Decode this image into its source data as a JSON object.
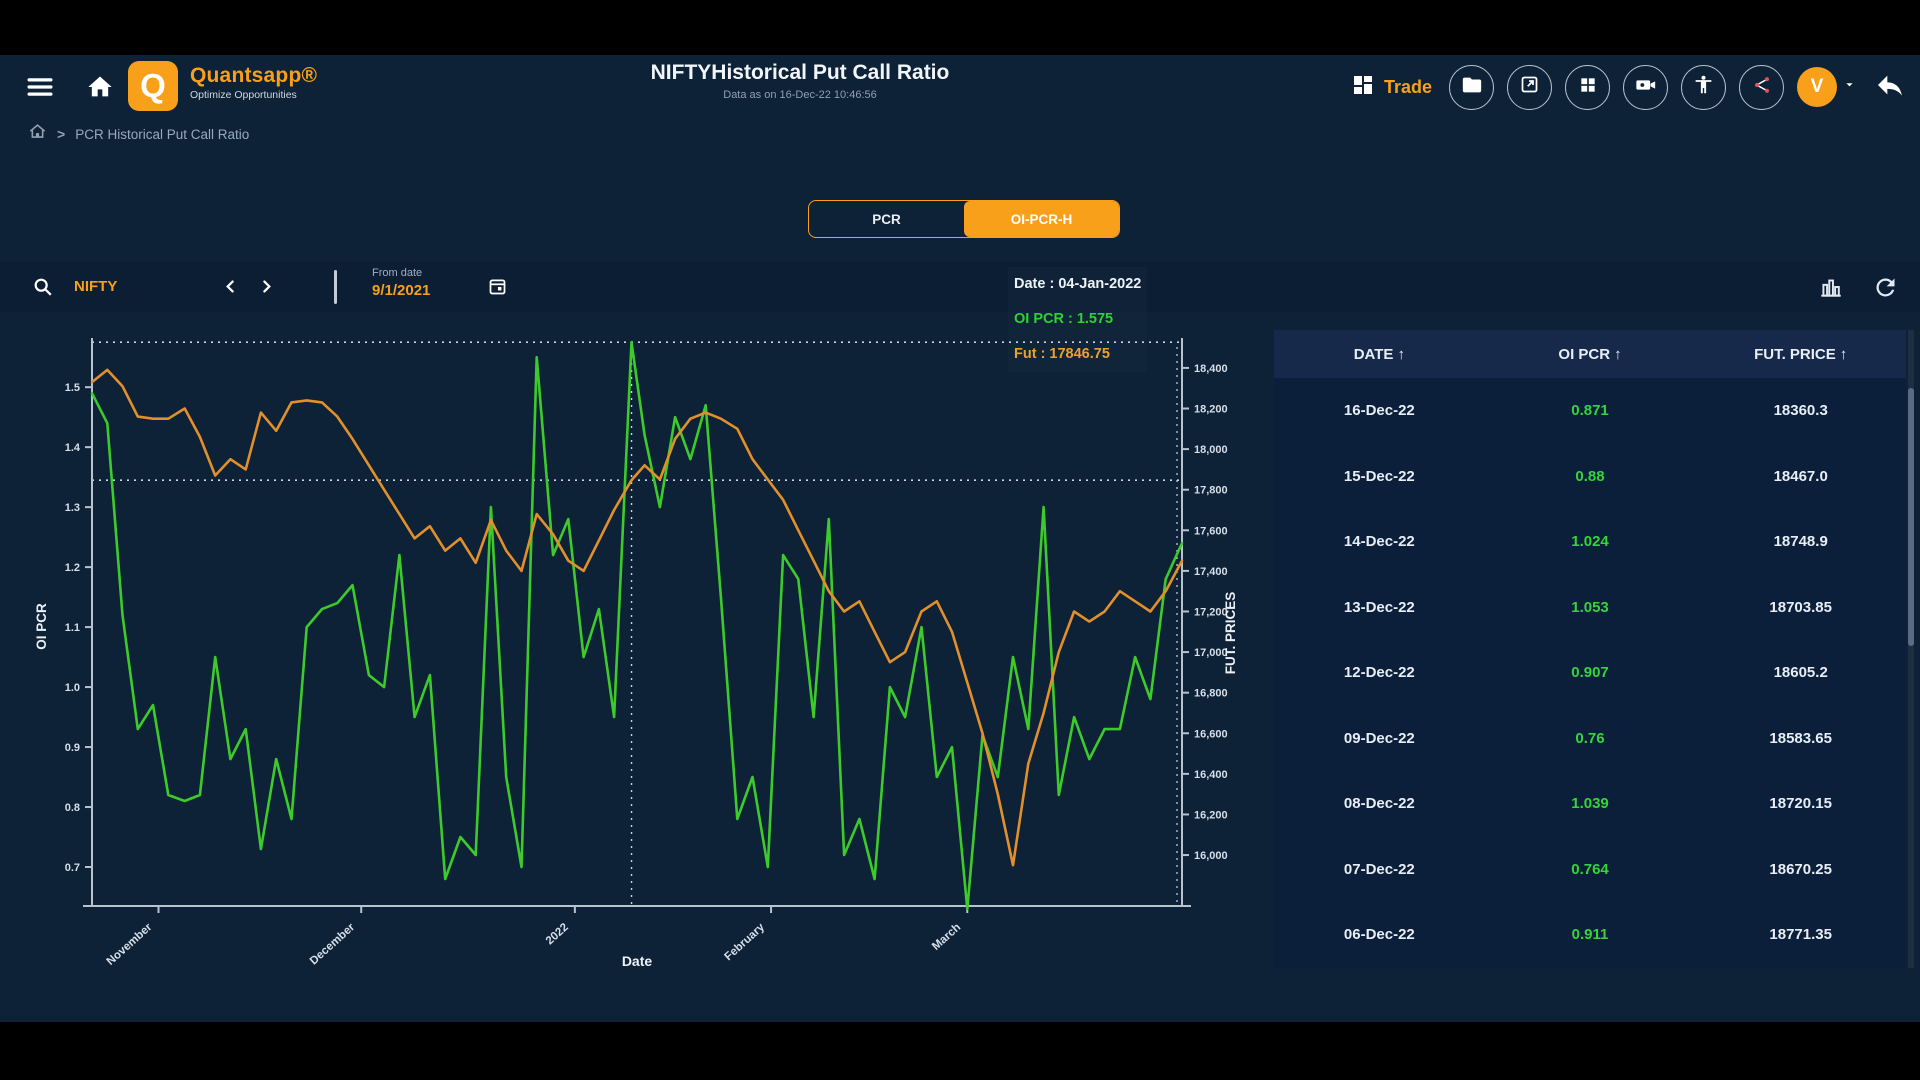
{
  "header": {
    "brand_name": "Quantsapp®",
    "brand_tagline": "Optimize Opportunities",
    "logo_letter": "Q",
    "title": "NIFTYHistorical Put Call Ratio",
    "subtitle": "Data as on 16-Dec-22 10:46:56",
    "trade_label": "Trade",
    "avatar_initial": "V"
  },
  "breadcrumb": {
    "separator": ">",
    "item": "PCR Historical Put Call Ratio"
  },
  "tabs": {
    "pcr": "PCR",
    "oi_pcr_h": "OI-PCR-H"
  },
  "toolbar": {
    "symbol": "NIFTY",
    "from_date_label": "From date",
    "from_date_value": "9/1/2021"
  },
  "tooltip": {
    "date": "Date : 04-Jan-2022",
    "oi_pcr": "OI PCR : 1.575",
    "fut": "Fut : 17846.75"
  },
  "table": {
    "sort_glyph": "↑",
    "columns": [
      {
        "label": "DATE"
      },
      {
        "label": "OI PCR"
      },
      {
        "label": "FUT. PRICE"
      }
    ],
    "rows": [
      [
        "16-Dec-22",
        "0.871",
        "18360.3"
      ],
      [
        "15-Dec-22",
        "0.88",
        "18467.0"
      ],
      [
        "14-Dec-22",
        "1.024",
        "18748.9"
      ],
      [
        "13-Dec-22",
        "1.053",
        "18703.85"
      ],
      [
        "12-Dec-22",
        "0.907",
        "18605.2"
      ],
      [
        "09-Dec-22",
        "0.76",
        "18583.65"
      ],
      [
        "08-Dec-22",
        "1.039",
        "18720.15"
      ],
      [
        "07-Dec-22",
        "0.764",
        "18670.25"
      ],
      [
        "06-Dec-22",
        "0.911",
        "18771.35"
      ]
    ]
  },
  "colors": {
    "accent_orange": "#f9a01b",
    "line_green": "#3ccb2b",
    "line_orange": "#e2902b",
    "table_green": "#35d43a",
    "background_navy": "#0d2137"
  },
  "chart_data": {
    "type": "line",
    "title": "NIFTY Historical Put Call Ratio",
    "xlabel": "Date",
    "ylabel_left": "OI PCR",
    "ylabel_right": "FUT. PRICES",
    "grid": false,
    "ylim_left": [
      0.635,
      1.567
    ],
    "ylim_right": [
      15749,
      18503
    ],
    "left_tick_labels": [
      "1.5",
      "1.4",
      "1.3",
      "1.2",
      "1.1",
      "1.0",
      "0.9",
      "0.8",
      "0.7"
    ],
    "left_tick_values": [
      1.5,
      1.4,
      1.3,
      1.2,
      1.1,
      1.0,
      0.9,
      0.8,
      0.7
    ],
    "right_tick_labels": [
      "18,400",
      "18,200",
      "18,000",
      "17,800",
      "17,600",
      "17,400",
      "17,200",
      "17,000",
      "16,800",
      "16,600",
      "16,400",
      "16,200",
      "16,000"
    ],
    "right_tick_values": [
      18400,
      18200,
      18000,
      17800,
      17600,
      17400,
      17200,
      17000,
      16800,
      16600,
      16400,
      16200,
      16000
    ],
    "x_ticks": [
      {
        "label": "November",
        "f": 0.061
      },
      {
        "label": "December",
        "f": 0.247
      },
      {
        "label": "2022",
        "f": 0.443
      },
      {
        "label": "February",
        "f": 0.623
      },
      {
        "label": "March",
        "f": 0.803
      }
    ],
    "crosshair": {
      "date": "04-Jan-2022",
      "x_frac": 0.495,
      "oi_pcr": 1.575,
      "fut": 17846.75
    },
    "series": [
      {
        "name": "OI PCR",
        "axis": "left",
        "color": "#3ccb2b",
        "x": [
          0.0,
          0.014,
          0.028,
          0.042,
          0.056,
          0.07,
          0.085,
          0.099,
          0.113,
          0.127,
          0.141,
          0.155,
          0.169,
          0.183,
          0.197,
          0.211,
          0.225,
          0.239,
          0.254,
          0.268,
          0.282,
          0.296,
          0.31,
          0.324,
          0.338,
          0.352,
          0.366,
          0.38,
          0.394,
          0.408,
          0.423,
          0.437,
          0.451,
          0.465,
          0.479,
          0.495,
          0.507,
          0.521,
          0.535,
          0.549,
          0.563,
          0.577,
          0.592,
          0.606,
          0.62,
          0.634,
          0.648,
          0.662,
          0.676,
          0.69,
          0.704,
          0.718,
          0.732,
          0.746,
          0.761,
          0.775,
          0.789,
          0.803,
          0.817,
          0.831,
          0.845,
          0.859,
          0.873,
          0.887,
          0.901,
          0.915,
          0.929,
          0.943,
          0.957,
          0.971,
          0.985,
          1.0
        ],
        "values": [
          1.49,
          1.44,
          1.12,
          0.93,
          0.97,
          0.82,
          0.81,
          0.82,
          1.05,
          0.88,
          0.93,
          0.73,
          0.88,
          0.78,
          1.1,
          1.13,
          1.14,
          1.17,
          1.02,
          1.0,
          1.22,
          0.95,
          1.02,
          0.68,
          0.75,
          0.72,
          1.3,
          0.85,
          0.7,
          1.55,
          1.22,
          1.28,
          1.05,
          1.13,
          0.95,
          1.575,
          1.42,
          1.3,
          1.45,
          1.38,
          1.47,
          1.15,
          0.78,
          0.85,
          0.7,
          1.22,
          1.18,
          0.95,
          1.28,
          0.72,
          0.78,
          0.68,
          1.0,
          0.95,
          1.1,
          0.85,
          0.9,
          0.63,
          0.92,
          0.85,
          1.05,
          0.93,
          1.3,
          0.82,
          0.95,
          0.88,
          0.93,
          0.93,
          1.05,
          0.98,
          1.18,
          1.24
        ]
      },
      {
        "name": "Fut. Price",
        "axis": "right",
        "color": "#e2902b",
        "x": [
          0.0,
          0.014,
          0.028,
          0.042,
          0.056,
          0.07,
          0.085,
          0.099,
          0.113,
          0.127,
          0.141,
          0.155,
          0.169,
          0.183,
          0.197,
          0.211,
          0.225,
          0.239,
          0.254,
          0.268,
          0.282,
          0.296,
          0.31,
          0.324,
          0.338,
          0.352,
          0.366,
          0.38,
          0.394,
          0.408,
          0.423,
          0.437,
          0.451,
          0.465,
          0.479,
          0.495,
          0.507,
          0.521,
          0.535,
          0.549,
          0.563,
          0.577,
          0.592,
          0.606,
          0.62,
          0.634,
          0.648,
          0.662,
          0.676,
          0.69,
          0.704,
          0.718,
          0.732,
          0.746,
          0.761,
          0.775,
          0.789,
          0.803,
          0.817,
          0.831,
          0.845,
          0.859,
          0.873,
          0.887,
          0.901,
          0.915,
          0.929,
          0.943,
          0.957,
          0.971,
          0.985,
          1.0
        ],
        "values": [
          18330,
          18390,
          18310,
          18160,
          18150,
          18150,
          18200,
          18060,
          17870,
          17950,
          17900,
          18180,
          18090,
          18230,
          18240,
          18230,
          18160,
          18050,
          17920,
          17800,
          17680,
          17560,
          17620,
          17500,
          17560,
          17440,
          17650,
          17500,
          17400,
          17680,
          17580,
          17450,
          17400,
          17550,
          17700,
          17847,
          17920,
          17850,
          18050,
          18150,
          18180,
          18150,
          18100,
          17950,
          17850,
          17750,
          17600,
          17450,
          17300,
          17200,
          17250,
          17100,
          16950,
          17000,
          17200,
          17250,
          17100,
          16850,
          16600,
          16300,
          15950,
          16450,
          16700,
          17000,
          17200,
          17150,
          17200,
          17300,
          17250,
          17200,
          17300,
          17450
        ]
      }
    ]
  }
}
